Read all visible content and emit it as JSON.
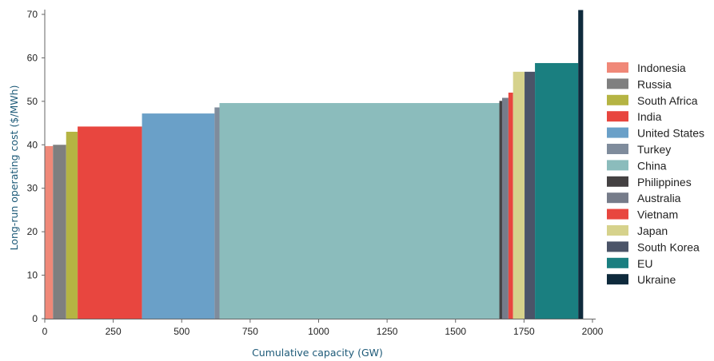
{
  "chart_data": {
    "type": "bar",
    "subtype": "supply-curve (variable-width bars)",
    "xlabel": "Cumulative capacity (GW)",
    "ylabel": "Long-run operating cost ($/MWh)",
    "xlim": [
      0,
      2000
    ],
    "ylim": [
      0,
      70
    ],
    "xticks": [
      0,
      250,
      500,
      750,
      1000,
      1250,
      1500,
      1750,
      2000
    ],
    "yticks": [
      0,
      10,
      20,
      30,
      40,
      50,
      60,
      70
    ],
    "grid": false,
    "legend_position": "right",
    "series": [
      {
        "name": "Indonesia",
        "x_start": 0,
        "x_end": 30,
        "value": 39.7,
        "color": "#f08878"
      },
      {
        "name": "Russia",
        "x_start": 30,
        "x_end": 78,
        "value": 40.0,
        "color": "#7f7f7f"
      },
      {
        "name": "South Africa",
        "x_start": 78,
        "x_end": 120,
        "value": 43.0,
        "color": "#b5b443"
      },
      {
        "name": "India",
        "x_start": 120,
        "x_end": 355,
        "value": 44.2,
        "color": "#e8463f"
      },
      {
        "name": "United States",
        "x_start": 355,
        "x_end": 620,
        "value": 47.2,
        "color": "#6aa0c8"
      },
      {
        "name": "Turkey",
        "x_start": 620,
        "x_end": 638,
        "value": 48.6,
        "color": "#7f8c9c"
      },
      {
        "name": "China",
        "x_start": 638,
        "x_end": 1660,
        "value": 49.6,
        "color": "#8bbcbc"
      },
      {
        "name": "Philippines",
        "x_start": 1660,
        "x_end": 1670,
        "value": 50.1,
        "color": "#444142"
      },
      {
        "name": "Australia",
        "x_start": 1670,
        "x_end": 1693,
        "value": 50.8,
        "color": "#767c8a"
      },
      {
        "name": "Vietnam",
        "x_start": 1693,
        "x_end": 1710,
        "value": 52.0,
        "color": "#e8463f"
      },
      {
        "name": "Japan",
        "x_start": 1710,
        "x_end": 1752,
        "value": 56.8,
        "color": "#d6d28c"
      },
      {
        "name": "South Korea",
        "x_start": 1752,
        "x_end": 1790,
        "value": 56.8,
        "color": "#4b5468"
      },
      {
        "name": "EU",
        "x_start": 1790,
        "x_end": 1948,
        "value": 58.8,
        "color": "#1a7f80"
      },
      {
        "name": "Ukraine",
        "x_start": 1948,
        "x_end": 1966,
        "value": 71.0,
        "color": "#0e2a3c"
      }
    ]
  }
}
